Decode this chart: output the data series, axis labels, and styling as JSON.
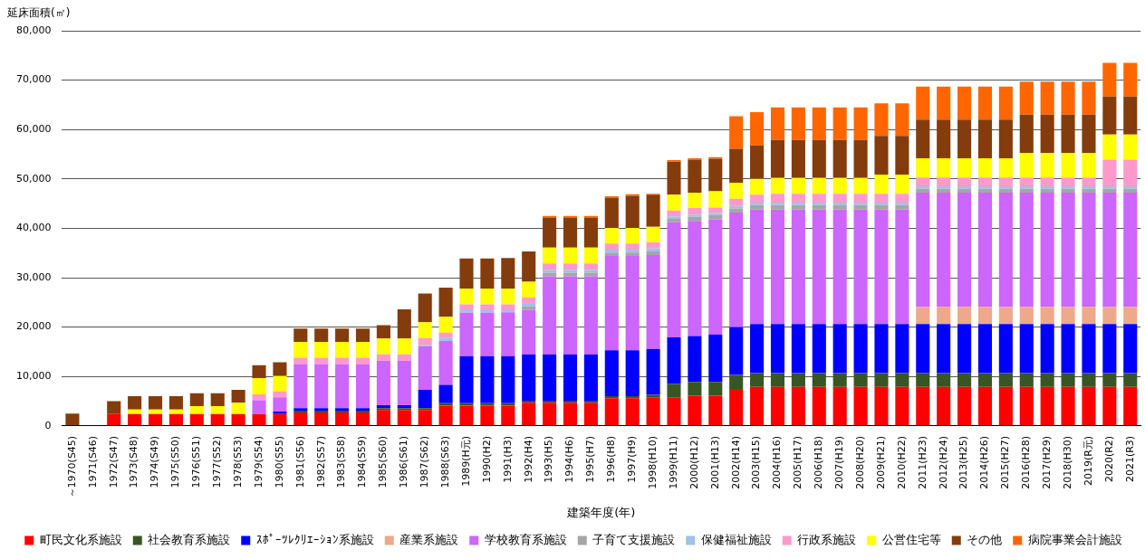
{
  "chart_data": {
    "type": "bar",
    "stacked": true,
    "ylabel": "延床面積(㎡)",
    "xlabel": "建築年度(年)",
    "categories": [
      "～1970(S45)",
      "1971(S46)",
      "1972(S47)",
      "1973(S48)",
      "1974(S49)",
      "1975(S50)",
      "1976(S51)",
      "1977(S52)",
      "1978(S53)",
      "1979(S54)",
      "1980(S55)",
      "1981(S56)",
      "1982(S57)",
      "1983(S58)",
      "1984(S59)",
      "1985(S60)",
      "1986(S61)",
      "1987(S62)",
      "1988(S63)",
      "1989(H元)",
      "1990(H2)",
      "1991(H3)",
      "1992(H4)",
      "1993(H5)",
      "1994(H6)",
      "1995(H7)",
      "1996(H8)",
      "1997(H9)",
      "1998(H10)",
      "1999(H11)",
      "2000(H12)",
      "2001(H13)",
      "2002(H14)",
      "2003(H15)",
      "2004(H16)",
      "2005(H17)",
      "2006(H18)",
      "2007(H19)",
      "2008(H20)",
      "2009(H21)",
      "2010(H22)",
      "2011(H23)",
      "2012(H24)",
      "2013(H25)",
      "2014(H26)",
      "2015(H27)",
      "2016(H28)",
      "2017(H29)",
      "2018(H30)",
      "2019(R元)",
      "2020(R2)",
      "2021(R3)"
    ],
    "series": [
      {
        "name": "町民文化系施設",
        "color": "#ff0000",
        "values": [
          0,
          0,
          2400,
          2400,
          2400,
          2400,
          2400,
          2400,
          2400,
          2400,
          2400,
          2700,
          2700,
          2700,
          2700,
          3200,
          3200,
          3200,
          4100,
          4100,
          4100,
          4100,
          4700,
          4700,
          4700,
          4700,
          5600,
          5600,
          5700,
          5700,
          6100,
          6100,
          7500,
          7900,
          7900,
          7900,
          7900,
          7900,
          7900,
          7900,
          7900,
          7900,
          7900,
          7900,
          7900,
          7900,
          7900,
          7900,
          7900,
          7900,
          7900,
          7900
        ]
      },
      {
        "name": "社会教育系施設",
        "color": "#375623",
        "values": [
          0,
          0,
          0,
          0,
          0,
          0,
          0,
          0,
          0,
          0,
          0,
          400,
          400,
          400,
          400,
          400,
          400,
          400,
          500,
          500,
          500,
          500,
          400,
          400,
          400,
          400,
          400,
          400,
          600,
          2800,
          2800,
          2800,
          2800,
          2800,
          2800,
          2800,
          2800,
          2800,
          2800,
          2800,
          2800,
          2800,
          2800,
          2800,
          2800,
          2800,
          2800,
          2800,
          2800,
          2800,
          2800,
          2800
        ]
      },
      {
        "name": "ｽﾎﾟｰﾂﾚｸﾘｴｰｼｮﾝ系施設",
        "color": "#0000ff",
        "values": [
          0,
          0,
          0,
          0,
          0,
          0,
          0,
          0,
          0,
          0,
          500,
          500,
          500,
          500,
          500,
          600,
          600,
          3700,
          3700,
          9500,
          9500,
          9500,
          9400,
          9400,
          9400,
          9400,
          9300,
          9300,
          9300,
          9400,
          9300,
          9600,
          9700,
          9900,
          9900,
          9900,
          9900,
          9900,
          9900,
          9900,
          9900,
          9900,
          9900,
          9900,
          9900,
          9900,
          9900,
          9900,
          9900,
          9900,
          9900,
          9900
        ]
      },
      {
        "name": "産業系施設",
        "color": "#eda98a",
        "values": [
          0,
          0,
          0,
          0,
          0,
          0,
          0,
          0,
          0,
          0,
          0,
          0,
          0,
          0,
          0,
          0,
          0,
          0,
          0,
          0,
          0,
          0,
          0,
          0,
          0,
          0,
          0,
          0,
          0,
          0,
          0,
          0,
          0,
          0,
          0,
          0,
          0,
          0,
          0,
          0,
          0,
          3500,
          3500,
          3500,
          3500,
          3500,
          3500,
          3500,
          3500,
          3500,
          3500,
          3500
        ]
      },
      {
        "name": "学校教育系施設",
        "color": "#cc66ff",
        "values": [
          0,
          0,
          0,
          0,
          0,
          0,
          0,
          0,
          0,
          2800,
          2900,
          8900,
          8900,
          8900,
          8900,
          9000,
          9000,
          8800,
          8900,
          8800,
          8800,
          8900,
          9000,
          15800,
          15800,
          15800,
          19100,
          19100,
          19000,
          23300,
          23300,
          23300,
          23200,
          23200,
          23200,
          23200,
          23200,
          23200,
          23200,
          23200,
          23200,
          23100,
          23100,
          23100,
          23100,
          23100,
          23100,
          23100,
          23100,
          23100,
          23100,
          23100
        ]
      },
      {
        "name": "子育て支援施設",
        "color": "#a6a6a6",
        "values": [
          0,
          0,
          0,
          0,
          0,
          0,
          0,
          0,
          0,
          0,
          0,
          0,
          0,
          0,
          0,
          0,
          0,
          0,
          0,
          0,
          0,
          null,
          700,
          700,
          700,
          700,
          700,
          700,
          700,
          700,
          800,
          900,
          800,
          900,
          900,
          900,
          900,
          900,
          900,
          900,
          900,
          800,
          800,
          800,
          800,
          800,
          800,
          800,
          800,
          800,
          800,
          800
        ]
      },
      {
        "name": "保健福祉施設",
        "color": "#9dc3e6",
        "values": [
          0,
          0,
          0,
          0,
          0,
          0,
          0,
          0,
          0,
          0,
          0,
          0,
          0,
          0,
          0,
          0,
          0,
          300,
          600,
          500,
          500,
          400,
          500,
          600,
          600,
          600,
          600,
          600,
          600,
          500,
          500,
          400,
          500,
          500,
          500,
          500,
          500,
          500,
          500,
          500,
          500,
          500,
          500,
          500,
          500,
          500,
          500,
          500,
          500,
          500,
          500,
          500
        ]
      },
      {
        "name": "行政系施設",
        "color": "#ff99cc",
        "values": [
          0,
          0,
          0,
          0,
          0,
          0,
          0,
          0,
          0,
          1200,
          1200,
          1300,
          1300,
          1300,
          1300,
          1300,
          1300,
          1400,
          1100,
          1200,
          1200,
          1200,
          1300,
          1300,
          1300,
          1300,
          1200,
          1200,
          1300,
          1200,
          1300,
          1100,
          1500,
          1600,
          1800,
          1800,
          1800,
          1800,
          1800,
          1800,
          1800,
          1800,
          1800,
          1800,
          1800,
          1800,
          1800,
          1800,
          1800,
          1800,
          5400,
          5400
        ]
      },
      {
        "name": "公営住宅等",
        "color": "#ffff00",
        "values": [
          0,
          0,
          0,
          900,
          900,
          900,
          1600,
          1600,
          2300,
          3300,
          3100,
          3200,
          3200,
          3200,
          3200,
          3200,
          3200,
          3200,
          3200,
          3200,
          3200,
          3200,
          3200,
          3200,
          3200,
          3200,
          3200,
          3200,
          3100,
          3200,
          3100,
          3300,
          3200,
          3200,
          3200,
          3200,
          3200,
          3200,
          3200,
          3900,
          3900,
          3900,
          3900,
          3900,
          3900,
          3900,
          5000,
          5000,
          5000,
          5000,
          5100,
          5100
        ]
      },
      {
        "name": "その他",
        "color": "#843c0c",
        "values": [
          2500,
          0,
          2600,
          2700,
          2700,
          2700,
          2600,
          2600,
          2600,
          2600,
          2800,
          2700,
          2700,
          2700,
          2700,
          2700,
          5900,
          5800,
          5900,
          6100,
          6100,
          6200,
          6100,
          6100,
          6100,
          6100,
          6100,
          6500,
          6500,
          6700,
          6700,
          6600,
          6900,
          6800,
          7700,
          7700,
          7700,
          7700,
          7700,
          7800,
          7800,
          7800,
          7800,
          7800,
          7800,
          7800,
          7700,
          7700,
          7700,
          7700,
          7700,
          7700
        ]
      },
      {
        "name": "病院事業会計施設",
        "color": "#ff6600",
        "values": [
          0,
          0,
          0,
          0,
          0,
          0,
          0,
          0,
          0,
          0,
          0,
          0,
          0,
          0,
          0,
          0,
          0,
          0,
          0,
          0,
          0,
          0,
          0,
          300,
          300,
          300,
          300,
          300,
          200,
          300,
          300,
          300,
          6600,
          6700,
          6600,
          6600,
          6600,
          6600,
          6600,
          6600,
          6600,
          6700,
          6700,
          6700,
          6700,
          6700,
          6700,
          6700,
          6700,
          6700,
          6800,
          6800
        ]
      }
    ],
    "ylim": [
      0,
      80000
    ],
    "yticks": [
      {
        "value": 0,
        "label": "0"
      },
      {
        "value": 10000,
        "label": "10,000"
      },
      {
        "value": 20000,
        "label": "20,000"
      },
      {
        "value": 30000,
        "label": "30,000"
      },
      {
        "value": 40000,
        "label": "40,000"
      },
      {
        "value": 50000,
        "label": "50,000"
      },
      {
        "value": 60000,
        "label": "60,000"
      },
      {
        "value": 70000,
        "label": "70,000"
      },
      {
        "value": 80000,
        "label": "80,000"
      }
    ],
    "grid": "y",
    "legend": "bottom"
  }
}
